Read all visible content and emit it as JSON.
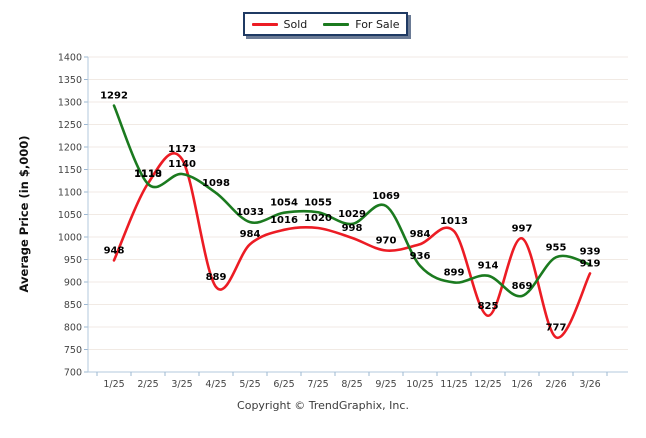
{
  "legend": {
    "items": [
      {
        "label": "Sold",
        "key": "sold"
      },
      {
        "label": "For Sale",
        "key": "for_sale"
      }
    ]
  },
  "footer": {
    "copyright": "Copyright © TrendGraphix, Inc."
  },
  "colors": {
    "sold": "#ec1c24",
    "for_sale": "#1b7a1f",
    "grid": "#f1eae4",
    "axis": "#b3c9de",
    "tick": "#9db8d2",
    "tick_text": "#444444",
    "label_text": "#000000",
    "legend_border": "#1f3a63"
  },
  "chart_data": {
    "type": "line",
    "title": "",
    "categories": [
      "1/25",
      "2/25",
      "3/25",
      "4/25",
      "5/25",
      "6/25",
      "7/25",
      "8/25",
      "9/25",
      "10/25",
      "11/25",
      "12/25",
      "1/26",
      "2/26",
      "3/26"
    ],
    "series": [
      {
        "name": "Sold",
        "color_key": "sold",
        "values": [
          948,
          1119,
          1173,
          889,
          984,
          1016,
          1020,
          998,
          970,
          984,
          1013,
          825,
          997,
          777,
          919
        ]
      },
      {
        "name": "For Sale",
        "color_key": "for_sale",
        "values": [
          1292,
          1118,
          1140,
          1098,
          1033,
          1054,
          1055,
          1029,
          1069,
          936,
          899,
          914,
          869,
          955,
          939
        ]
      }
    ],
    "xlabel": "",
    "ylabel": "Average Price (in $,000)",
    "ylim": [
      700,
      1400
    ],
    "ytick_step": 50,
    "grid": true,
    "legend_position": "top",
    "data_labels": true
  }
}
